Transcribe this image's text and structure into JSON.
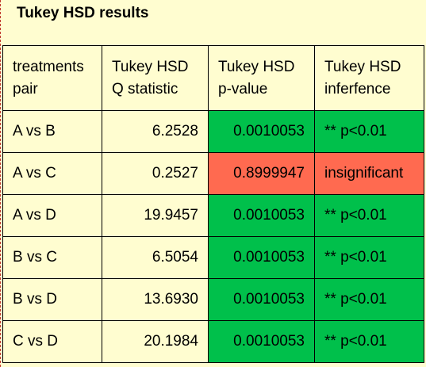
{
  "title": "Tukey HSD results",
  "colors": {
    "background": "#fffdd0",
    "significant": "#00c04b",
    "insignificant": "#ff6a50"
  },
  "table": {
    "headers": [
      [
        "treatments",
        "pair"
      ],
      [
        "Tukey HSD",
        "Q statistic"
      ],
      [
        "Tukey HSD",
        "p-value"
      ],
      [
        "Tukey HSD",
        "inferfence"
      ]
    ],
    "rows": [
      {
        "pair": "A vs B",
        "q": "6.2528",
        "p": "0.0010053",
        "inference": "** p<0.01",
        "significant": true
      },
      {
        "pair": "A vs C",
        "q": "0.2527",
        "p": "0.8999947",
        "inference": "insignificant",
        "significant": false
      },
      {
        "pair": "A vs D",
        "q": "19.9457",
        "p": "0.0010053",
        "inference": "** p<0.01",
        "significant": true
      },
      {
        "pair": "B vs C",
        "q": "6.5054",
        "p": "0.0010053",
        "inference": "** p<0.01",
        "significant": true
      },
      {
        "pair": "B vs D",
        "q": "13.6930",
        "p": "0.0010053",
        "inference": "** p<0.01",
        "significant": true
      },
      {
        "pair": "C vs D",
        "q": "20.1984",
        "p": "0.0010053",
        "inference": "** p<0.01",
        "significant": true
      }
    ]
  }
}
